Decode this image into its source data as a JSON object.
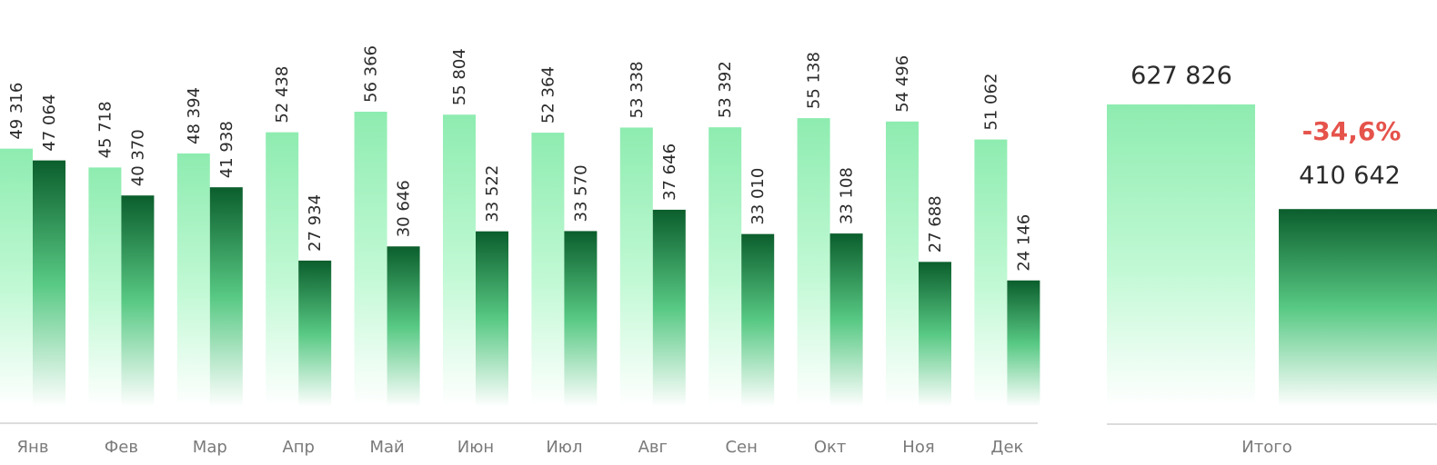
{
  "chart_data": [
    {
      "type": "bar",
      "categories": [
        "Янв",
        "Фев",
        "Мар",
        "Апр",
        "Май",
        "Июн",
        "Июл",
        "Авг",
        "Сен",
        "Окт",
        "Ноя",
        "Дек"
      ],
      "series": [
        {
          "values": [
            49316,
            45718,
            48394,
            52438,
            56366,
            55804,
            52364,
            53338,
            53392,
            55138,
            54496,
            51062
          ]
        },
        {
          "values": [
            47064,
            40370,
            41938,
            27934,
            30646,
            33522,
            33570,
            37646,
            33010,
            33108,
            27688,
            24146
          ]
        }
      ],
      "value_labels": [
        [
          "49 316",
          "45 718",
          "48 394",
          "52 438",
          "56 366",
          "55 804",
          "52 364",
          "53 338",
          "53 392",
          "55 138",
          "54 496",
          "51 062"
        ],
        [
          "47 064",
          "40 370",
          "41 938",
          "27 934",
          "30 646",
          "33 522",
          "33 570",
          "37 646",
          "33 010",
          "33 108",
          "27 688",
          "24 146"
        ]
      ],
      "colors": {
        "series_1": "#8eecb0",
        "series_2": "#0b5e2c"
      },
      "ylim": [
        0,
        60000
      ],
      "grid": false
    },
    {
      "type": "bar",
      "categories": [
        "Итого"
      ],
      "series": [
        {
          "values": [
            627826
          ]
        },
        {
          "values": [
            410642
          ]
        }
      ],
      "value_labels": [
        "627 826",
        "410 642"
      ],
      "change_label": "-34,6%",
      "colors": {
        "series_1": "#8eecb0",
        "series_2": "#0b5e2c",
        "change": "#e5534b"
      },
      "grid": false
    }
  ]
}
